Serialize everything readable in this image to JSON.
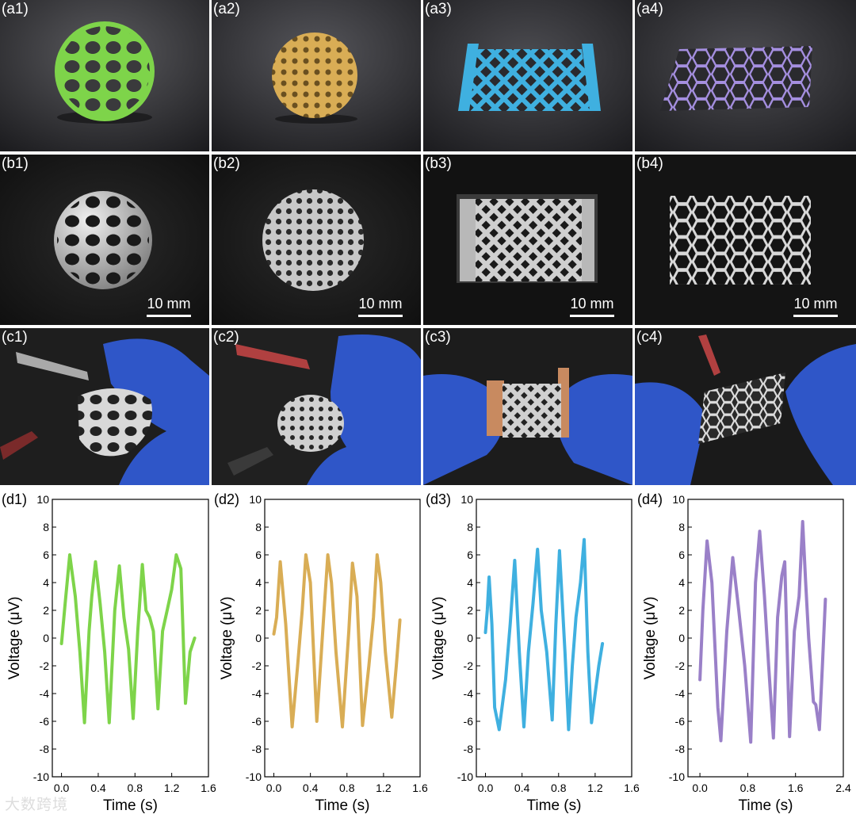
{
  "panels": {
    "a1": {
      "label": "(a1)",
      "color": "#7ed44a",
      "shape": "sphere-voronoi"
    },
    "a2": {
      "label": "(a2)",
      "color": "#d9ad55",
      "shape": "sphere-gyroid"
    },
    "a3": {
      "label": "(a3)",
      "color": "#3fb0e0",
      "shape": "diamond-lattice"
    },
    "a4": {
      "label": "(a4)",
      "color": "#a58fe0",
      "shape": "honeycomb"
    },
    "b1": {
      "label": "(b1)",
      "scale": "10 mm"
    },
    "b2": {
      "label": "(b2)",
      "scale": "10 mm"
    },
    "b3": {
      "label": "(b3)",
      "scale": "10 mm"
    },
    "b4": {
      "label": "(b4)",
      "scale": "10 mm"
    },
    "c1": {
      "label": "(c1)"
    },
    "c2": {
      "label": "(c2)"
    },
    "c3": {
      "label": "(c3)"
    },
    "c4": {
      "label": "(c4)"
    }
  },
  "watermark": "大数跨境",
  "chart_data": [
    {
      "panel_label": "(d1)",
      "type": "line",
      "color": "#7ed44a",
      "xlabel": "Time (s)",
      "ylabel": "Voltage (μV)",
      "xlim": [
        -0.1,
        1.6
      ],
      "ylim": [
        -10,
        10
      ],
      "xticks": [
        0.0,
        0.4,
        0.8,
        1.2,
        1.6
      ],
      "yticks": [
        -10,
        -8,
        -6,
        -4,
        -2,
        0,
        2,
        4,
        6,
        8,
        10
      ],
      "x": [
        0.0,
        0.04,
        0.09,
        0.15,
        0.2,
        0.25,
        0.3,
        0.33,
        0.37,
        0.42,
        0.47,
        0.52,
        0.58,
        0.63,
        0.68,
        0.73,
        0.78,
        0.83,
        0.88,
        0.92,
        0.96,
        1.0,
        1.05,
        1.1,
        1.15,
        1.2,
        1.25,
        1.3,
        1.35,
        1.4,
        1.45
      ],
      "y": [
        -0.4,
        2.5,
        6.0,
        3.0,
        -1.0,
        -6.1,
        0.5,
        3.0,
        5.5,
        2.5,
        -1.0,
        -6.1,
        2.0,
        5.2,
        1.5,
        -0.8,
        -5.8,
        0.5,
        5.3,
        2.0,
        1.5,
        0.5,
        -5.1,
        0.5,
        2.0,
        3.5,
        6.0,
        5.0,
        -4.7,
        -1.0,
        0.0
      ]
    },
    {
      "panel_label": "(d2)",
      "type": "line",
      "color": "#d9ad55",
      "xlabel": "Time (s)",
      "ylabel": "Voltage (μV)",
      "xlim": [
        -0.1,
        1.6
      ],
      "ylim": [
        -10,
        10
      ],
      "xticks": [
        0.0,
        0.4,
        0.8,
        1.2,
        1.6
      ],
      "yticks": [
        -10,
        -8,
        -6,
        -4,
        -2,
        0,
        2,
        4,
        6,
        8,
        10
      ],
      "x": [
        0.0,
        0.03,
        0.07,
        0.13,
        0.2,
        0.26,
        0.31,
        0.35,
        0.4,
        0.47,
        0.5,
        0.55,
        0.59,
        0.63,
        0.68,
        0.75,
        0.82,
        0.86,
        0.91,
        0.97,
        1.04,
        1.09,
        1.13,
        1.17,
        1.22,
        1.29,
        1.34,
        1.38
      ],
      "y": [
        0.3,
        1.5,
        5.5,
        1.0,
        -6.4,
        -2.0,
        2.0,
        6.0,
        4.0,
        -6.0,
        -3.0,
        2.0,
        6.0,
        4.0,
        -1.0,
        -6.4,
        0.5,
        5.4,
        3.0,
        -6.3,
        -2.0,
        1.5,
        6.0,
        4.0,
        -1.0,
        -5.7,
        -2.0,
        1.3
      ]
    },
    {
      "panel_label": "(d3)",
      "type": "line",
      "color": "#3fb0e0",
      "xlabel": "Time (s)",
      "ylabel": "Voltage (μV)",
      "xlim": [
        -0.1,
        1.6
      ],
      "ylim": [
        -10,
        10
      ],
      "xticks": [
        0.0,
        0.4,
        0.8,
        1.2,
        1.6
      ],
      "yticks": [
        -10,
        -8,
        -6,
        -4,
        -2,
        0,
        2,
        4,
        6,
        8,
        10
      ],
      "x": [
        0.0,
        0.02,
        0.04,
        0.07,
        0.1,
        0.15,
        0.22,
        0.27,
        0.32,
        0.37,
        0.42,
        0.47,
        0.52,
        0.57,
        0.61,
        0.67,
        0.73,
        0.77,
        0.81,
        0.87,
        0.91,
        0.95,
        0.99,
        1.04,
        1.08,
        1.12,
        1.16,
        1.2,
        1.24,
        1.28
      ],
      "y": [
        0.4,
        2.0,
        4.4,
        1.0,
        -5.0,
        -6.6,
        -3.0,
        1.0,
        5.6,
        -1.0,
        -6.4,
        -1.0,
        2.5,
        6.4,
        2.0,
        -1.0,
        -5.9,
        1.0,
        6.3,
        -1.0,
        -6.6,
        -2.0,
        1.5,
        4.0,
        7.1,
        -1.0,
        -6.1,
        -4.0,
        -2.0,
        -0.4
      ]
    },
    {
      "panel_label": "(d4)",
      "type": "line",
      "color": "#9a80c8",
      "xlabel": "Time (s)",
      "ylabel": "Voltage (μV)",
      "xlim": [
        -0.2,
        2.4
      ],
      "ylim": [
        -10,
        10
      ],
      "xticks": [
        0.0,
        0.8,
        1.6,
        2.4
      ],
      "yticks": [
        -10,
        -8,
        -6,
        -4,
        -2,
        0,
        2,
        4,
        6,
        8,
        10
      ],
      "x": [
        0.0,
        0.05,
        0.12,
        0.2,
        0.3,
        0.35,
        0.45,
        0.55,
        0.65,
        0.75,
        0.85,
        0.93,
        1.0,
        1.08,
        1.15,
        1.23,
        1.3,
        1.37,
        1.42,
        1.5,
        1.58,
        1.66,
        1.72,
        1.77,
        1.82,
        1.9,
        1.94,
        2.0,
        2.05,
        2.1
      ],
      "y": [
        -3.0,
        2.0,
        7.0,
        4.0,
        -5.0,
        -7.4,
        0.5,
        5.8,
        2.0,
        -2.0,
        -7.5,
        4.0,
        7.7,
        3.0,
        -2.0,
        -7.2,
        1.5,
        4.5,
        5.5,
        -7.1,
        0.5,
        3.0,
        8.4,
        4.0,
        0.0,
        -4.6,
        -4.8,
        -6.6,
        -2.0,
        2.8
      ]
    }
  ]
}
